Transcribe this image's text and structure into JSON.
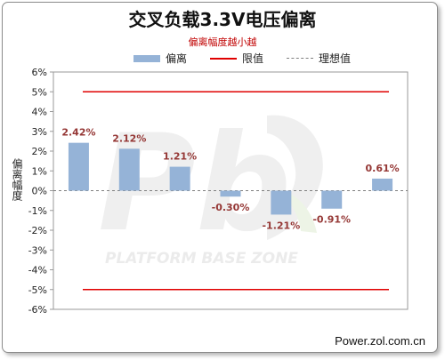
{
  "chart_data": {
    "type": "bar",
    "title": "交叉负载3.3V电压偏离",
    "subtitle": "偏离幅度越小越",
    "ylabel": "偏离幅度",
    "ylim": [
      -6,
      6
    ],
    "yticks": [
      "6%",
      "5%",
      "4%",
      "3%",
      "2%",
      "1%",
      "0%",
      "-1%",
      "-2%",
      "-3%",
      "-4%",
      "-5%",
      "-6%"
    ],
    "series": [
      {
        "name": "偏离",
        "values": [
          2.42,
          2.12,
          1.21,
          -0.3,
          -1.21,
          -0.91,
          0.61
        ],
        "labels": [
          "2.42%",
          "2.12%",
          "1.21%",
          "-0.30%",
          "-1.21%",
          "-0.91%",
          "0.61%"
        ]
      }
    ],
    "limits": {
      "name": "限值",
      "values": [
        5,
        -5
      ]
    },
    "ideal": {
      "name": "理想值",
      "value": 0
    },
    "grid": false,
    "legend_position": "top"
  },
  "watermark": {
    "logo": "Pb",
    "text": "PLATFORM BASE ZONE"
  },
  "source": "Power.zol.com.cn",
  "colors": {
    "bar": "#95b3d7",
    "limit": "#e00000",
    "label": "#953735",
    "ideal": "#7f7f7f"
  }
}
